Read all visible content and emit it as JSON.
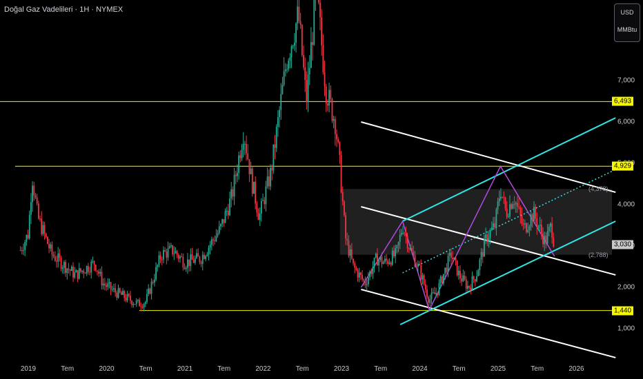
{
  "header": {
    "title": "Doğal Gaz Vadelileri · 1H · NYMEX"
  },
  "unit_box": {
    "currency": "USD",
    "unit": "MMBtu"
  },
  "chart_data": {
    "type": "candlestick",
    "x": [
      "2019",
      "Tem",
      "2020",
      "Tem",
      "2021",
      "Tem",
      "2022",
      "Tem",
      "2023",
      "Tem",
      "2024",
      "Tem",
      "2025",
      "Tem",
      "2026"
    ],
    "y_ticks": [
      "1,000",
      "2,000",
      "3,000",
      "4,000",
      "5,000",
      "6,000",
      "7,000"
    ],
    "ylim": [
      0.3,
      8.8
    ],
    "price_path": [
      [
        2018.9,
        2.9
      ],
      [
        2019.0,
        3.3
      ],
      [
        2019.05,
        4.7
      ],
      [
        2019.12,
        3.7
      ],
      [
        2019.3,
        2.8
      ],
      [
        2019.6,
        2.3
      ],
      [
        2019.85,
        2.6
      ],
      [
        2019.95,
        2.1
      ],
      [
        2020.1,
        1.9
      ],
      [
        2020.25,
        1.75
      ],
      [
        2020.4,
        1.6
      ],
      [
        2020.5,
        1.65
      ],
      [
        2020.7,
        2.8
      ],
      [
        2020.85,
        2.9
      ],
      [
        2021.0,
        2.6
      ],
      [
        2021.2,
        2.7
      ],
      [
        2021.45,
        3.4
      ],
      [
        2021.6,
        4.2
      ],
      [
        2021.75,
        5.8
      ],
      [
        2021.85,
        4.6
      ],
      [
        2021.95,
        3.7
      ],
      [
        2022.1,
        4.8
      ],
      [
        2022.3,
        7.5
      ],
      [
        2022.45,
        8.6
      ],
      [
        2022.55,
        6.5
      ],
      [
        2022.68,
        9.2
      ],
      [
        2022.8,
        6.8
      ],
      [
        2022.92,
        6.0
      ],
      [
        2022.98,
        4.9
      ],
      [
        2023.05,
        3.2
      ],
      [
        2023.15,
        2.5
      ],
      [
        2023.3,
        2.1
      ],
      [
        2023.45,
        2.7
      ],
      [
        2023.55,
        2.6
      ],
      [
        2023.7,
        2.8
      ],
      [
        2023.78,
        3.5
      ],
      [
        2023.88,
        2.9
      ],
      [
        2024.0,
        2.4
      ],
      [
        2024.12,
        1.7
      ],
      [
        2024.22,
        1.9
      ],
      [
        2024.4,
        2.8
      ],
      [
        2024.5,
        2.3
      ],
      [
        2024.62,
        2.0
      ],
      [
        2024.72,
        2.3
      ],
      [
        2024.85,
        3.2
      ],
      [
        2024.96,
        3.5
      ],
      [
        2025.03,
        4.4
      ],
      [
        2025.1,
        3.8
      ],
      [
        2025.2,
        4.2
      ],
      [
        2025.33,
        3.4
      ],
      [
        2025.45,
        3.8
      ],
      [
        2025.6,
        3.1
      ],
      [
        2025.68,
        3.5
      ],
      [
        2025.72,
        3.0
      ]
    ],
    "horizontal_levels": [
      {
        "value": 6.493,
        "label": "6,493",
        "color": "#f7f700"
      },
      {
        "value": 4.929,
        "label": "4,929",
        "color": "#f7f700"
      },
      {
        "value": 1.44,
        "label": "1,440",
        "color": "#f7f700"
      }
    ],
    "last_price": {
      "value": 3.03,
      "label": "3,030"
    },
    "range_box": {
      "from": 2022.98,
      "top": 4.378,
      "bottom": 2.788,
      "top_label": "(4,378)",
      "bottom_label": "(2,788)"
    },
    "cyan_channel": {
      "upper": [
        [
          2023.78,
          3.6
        ],
        [
          2026.5,
          6.1
        ]
      ],
      "lower": [
        [
          2023.75,
          1.1
        ],
        [
          2026.5,
          3.6
        ]
      ],
      "dotted_mid": [
        [
          2023.78,
          2.35
        ],
        [
          2026.5,
          4.85
        ]
      ],
      "color": "#2ee6e6"
    },
    "white_channel": {
      "upper": [
        [
          2023.25,
          6.0
        ],
        [
          2026.5,
          4.3
        ]
      ],
      "mid": [
        [
          2023.25,
          3.95
        ],
        [
          2026.5,
          2.3
        ]
      ],
      "lower": [
        [
          2023.25,
          1.95
        ],
        [
          2026.5,
          0.3
        ]
      ],
      "color": "#ffffff"
    },
    "purple_wave": [
      [
        2023.25,
        2.0
      ],
      [
        2023.78,
        3.6
      ],
      [
        2024.12,
        1.45
      ],
      [
        2025.03,
        4.929
      ],
      [
        2025.72,
        2.75
      ]
    ],
    "colors": {
      "up": "#22ab94",
      "down": "#f23645",
      "level": "#f7f700",
      "purple": "#b44be1",
      "box": "#3a3a3a"
    }
  }
}
